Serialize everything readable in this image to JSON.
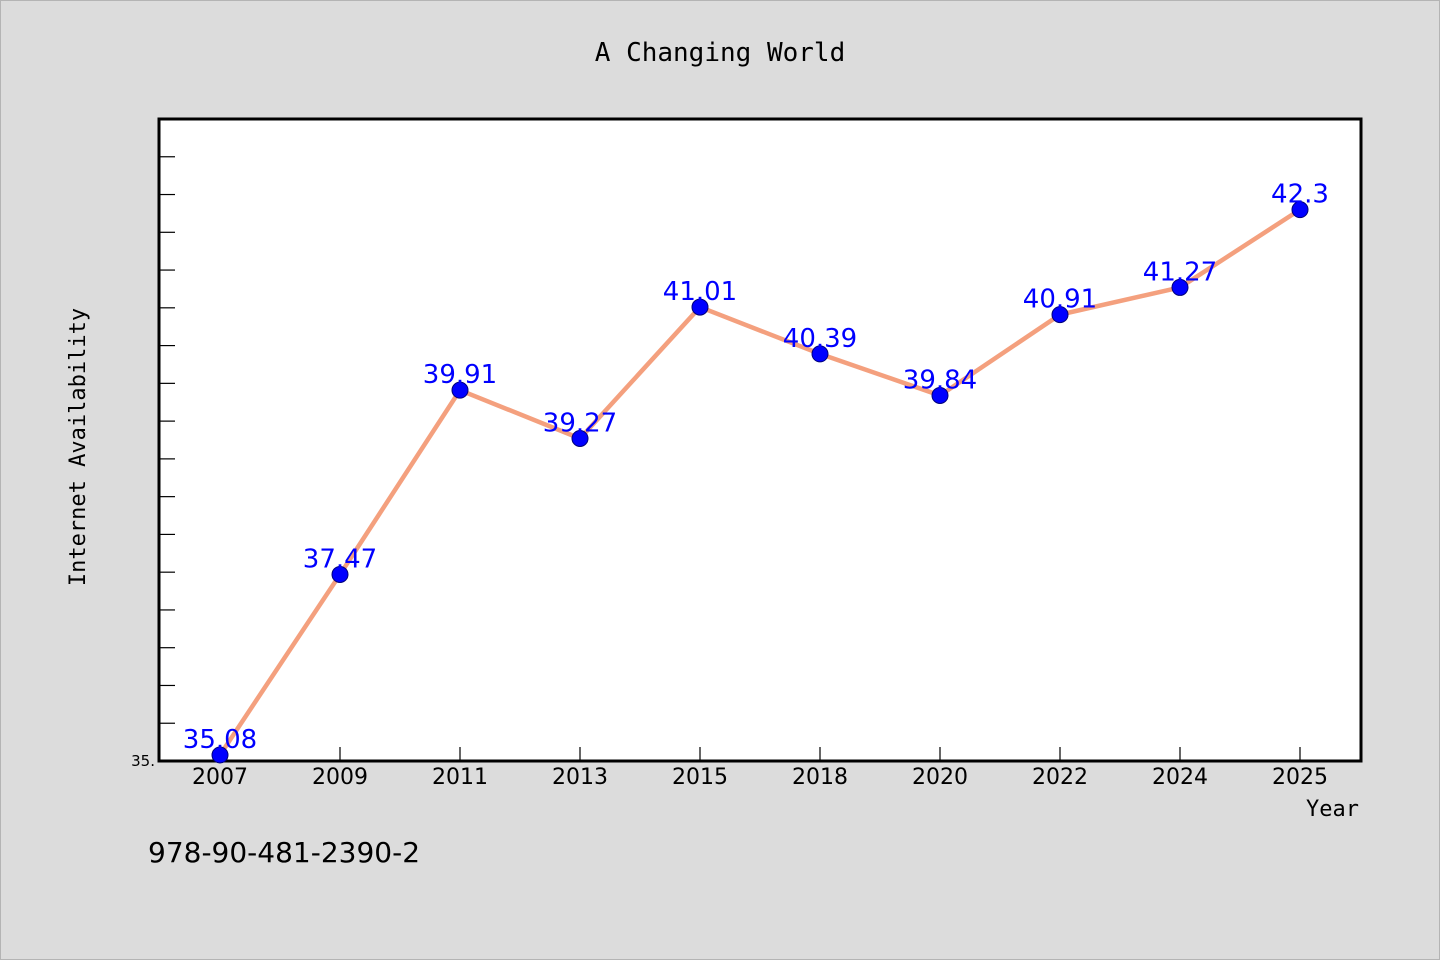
{
  "chart_data": {
    "type": "line",
    "title": "A Changing World",
    "xlabel": "Year",
    "ylabel": "Internet Availability",
    "categories": [
      "2007",
      "2009",
      "2011",
      "2013",
      "2015",
      "2018",
      "2020",
      "2022",
      "2024",
      "2025"
    ],
    "series": [
      {
        "values": [
          35.08,
          37.47,
          39.91,
          39.27,
          41.01,
          40.39,
          39.84,
          40.91,
          41.27,
          42.3
        ],
        "data_labels": [
          "35.08",
          "37.47",
          "39.91",
          "39.27",
          "41.01",
          "40.39",
          "39.84",
          "40.91",
          "41.27",
          "42.3"
        ]
      }
    ],
    "ylim": [
      35.0,
      43.5
    ],
    "y_tick_label": "35.",
    "grid": false,
    "line_color": "#f4a07e",
    "marker_color": "#0000ff",
    "label_color": "#0000ff",
    "background_color": "#dcdcdc",
    "plot_background": "#ffffff"
  },
  "footer": {
    "isbn": "978-90-481-2390-2"
  }
}
